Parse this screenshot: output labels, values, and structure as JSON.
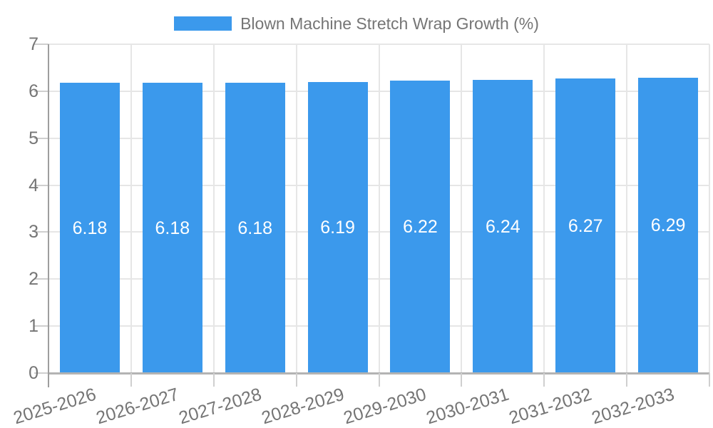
{
  "legend": {
    "label": "Blown Machine Stretch Wrap Growth (%)"
  },
  "chart_data": {
    "type": "bar",
    "title": "",
    "legend_entries": [
      "Blown Machine Stretch Wrap Growth (%)"
    ],
    "legend_position": "top",
    "categories": [
      "2025-2026",
      "2026-2027",
      "2027-2028",
      "2028-2029",
      "2029-2030",
      "2030-2031",
      "2031-2032",
      "2032-2033"
    ],
    "series": [
      {
        "name": "Blown Machine Stretch Wrap Growth (%)",
        "values": [
          6.18,
          6.18,
          6.18,
          6.19,
          6.22,
          6.24,
          6.27,
          6.29
        ],
        "value_labels": [
          "6.18",
          "6.18",
          "6.18",
          "6.19",
          "6.22",
          "6.24",
          "6.27",
          "6.29"
        ]
      }
    ],
    "xlabel": "",
    "ylabel": "",
    "ylim": [
      0,
      7
    ],
    "ytick_labels": [
      "0",
      "1",
      "2",
      "3",
      "4",
      "5",
      "6",
      "7"
    ],
    "grid": true,
    "colors": {
      "bar": "#3B99EC",
      "bar_value_text": "#FFFFFF",
      "axis_text": "#757575",
      "gridline": "#E6E6E6",
      "tick": "#CFCFCF",
      "axis_line": "#9E9E9E",
      "baseline": "#B3B3B3",
      "background": "#FFFFFF"
    }
  }
}
